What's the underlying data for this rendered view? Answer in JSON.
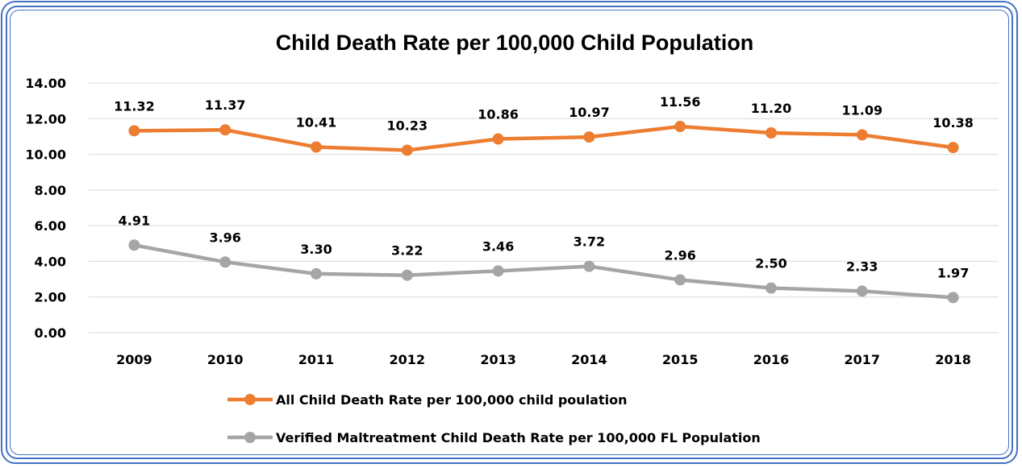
{
  "chart_data": {
    "type": "line",
    "title": "Child Death Rate per 100,000 Child Population",
    "categories": [
      "2009",
      "2010",
      "2011",
      "2012",
      "2013",
      "2014",
      "2015",
      "2016",
      "2017",
      "2018"
    ],
    "series": [
      {
        "name": "All Child Death Rate per 100,000 child poulation",
        "color": "#ed7d31",
        "values": [
          11.32,
          11.37,
          10.41,
          10.23,
          10.86,
          10.97,
          11.56,
          11.2,
          11.09,
          10.38
        ],
        "labels": [
          "11.32",
          "11.37",
          "10.41",
          "10.23",
          "10.86",
          "10.97",
          "11.56",
          "11.20",
          "11.09",
          "10.38"
        ]
      },
      {
        "name": "Verified Maltreatment Child Death Rate per 100,000 FL Population",
        "color": "#a5a5a5",
        "values": [
          4.91,
          3.96,
          3.3,
          3.22,
          3.46,
          3.72,
          2.96,
          2.5,
          2.33,
          1.97
        ],
        "labels": [
          "4.91",
          "3.96",
          "3.30",
          "3.22",
          "3.46",
          "3.72",
          "2.96",
          "2.50",
          "2.33",
          "1.97"
        ]
      }
    ],
    "ylim": [
      0,
      14
    ],
    "yticks": [
      "0.00",
      "2.00",
      "4.00",
      "6.00",
      "8.00",
      "10.00",
      "12.00",
      "14.00"
    ],
    "grid": true,
    "legend_position": "bottom"
  }
}
